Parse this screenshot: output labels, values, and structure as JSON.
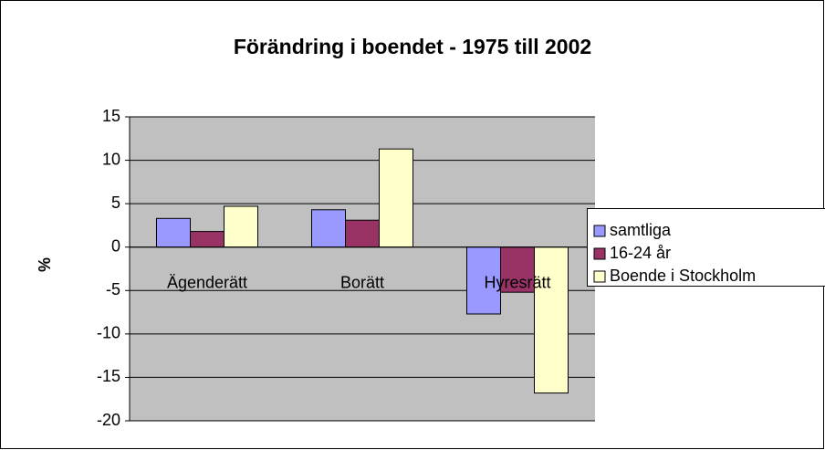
{
  "chart_data": {
    "type": "bar",
    "title": "Förändring i boendet - 1975 till 2002",
    "y_label": "%",
    "categories": [
      "Ägenderätt",
      "Borätt",
      "Hyresrätt"
    ],
    "series": [
      {
        "name": "samtliga",
        "color": "#9999ff",
        "values": [
          3.3,
          4.3,
          -7.7
        ]
      },
      {
        "name": "16-24 år",
        "color": "#993366",
        "values": [
          1.8,
          3.1,
          -5.2
        ]
      },
      {
        "name": "Boende i Stockholm",
        "color": "#ffffcc",
        "values": [
          4.7,
          11.3,
          -16.8
        ]
      }
    ],
    "ylim": [
      -20,
      15
    ],
    "yticks": [
      -20,
      -15,
      -10,
      -5,
      0,
      5,
      10,
      15
    ],
    "grid": true,
    "legend": "right"
  }
}
